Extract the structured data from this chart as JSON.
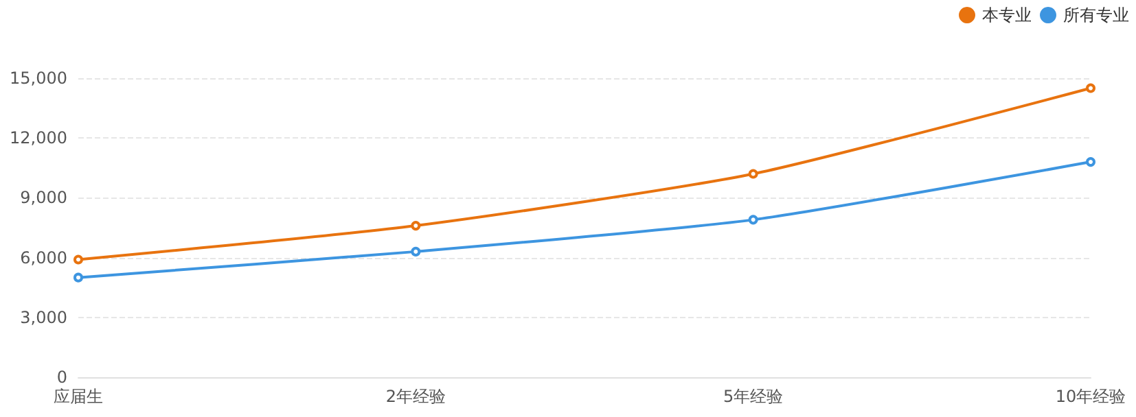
{
  "chart_data": {
    "type": "line",
    "categories": [
      "应届生",
      "2年经验",
      "5年经验",
      "10年经验"
    ],
    "series": [
      {
        "name": "本专业",
        "color": "#e8730f",
        "values": [
          5900,
          7600,
          10200,
          14500
        ]
      },
      {
        "name": "所有专业",
        "color": "#3d95e0",
        "values": [
          5000,
          6300,
          7900,
          10800
        ]
      }
    ],
    "ylim": [
      0,
      15000
    ],
    "yticks": [
      0,
      {
        "value": 3000,
        "label": "3,000"
      },
      {
        "value": 6000,
        "label": "6,000"
      },
      {
        "value": 9000,
        "label": "9,000"
      },
      {
        "value": 12000,
        "label": "12,000"
      },
      {
        "value": 15000,
        "label": "15,000"
      }
    ],
    "grid": "y",
    "legend": "top right",
    "marker": "circle",
    "line_style": "solid"
  }
}
